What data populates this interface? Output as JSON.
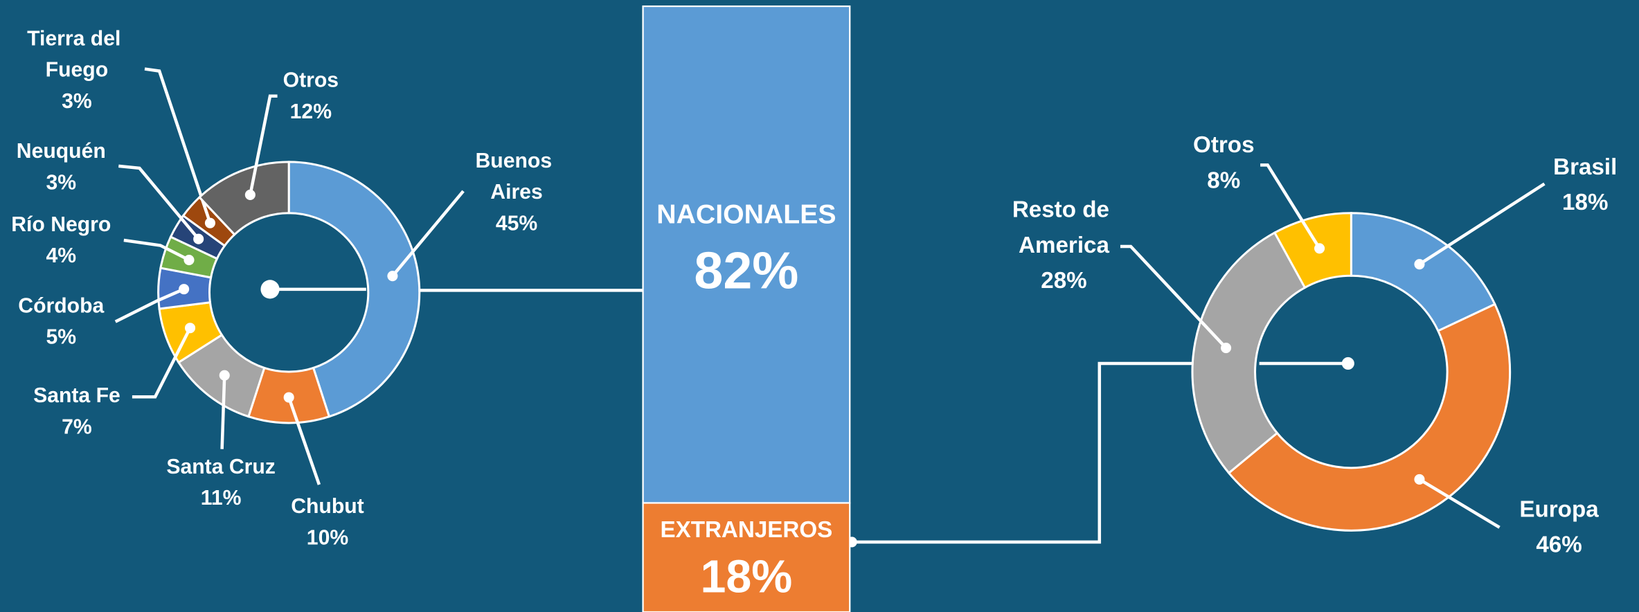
{
  "chart_data": [
    {
      "type": "donut",
      "categories": [
        "Buenos Aires",
        "Chubut",
        "Santa Cruz",
        "Santa Fe",
        "Córdoba",
        "Río Negro",
        "Neuquén",
        "Tierra del Fuego",
        "Otros"
      ],
      "values": [
        45,
        10,
        11,
        7,
        5,
        4,
        3,
        3,
        12
      ],
      "value_labels": [
        "45%",
        "10%",
        "11%",
        "7%",
        "5%",
        "4%",
        "3%",
        "3%",
        "12%"
      ],
      "colors": [
        "#5b9bd5",
        "#ed7d31",
        "#a5a5a5",
        "#ffc000",
        "#4472c4",
        "#70ad47",
        "#264478",
        "#9e480e",
        "#636363"
      ]
    },
    {
      "type": "stacked_bar",
      "categories": [
        "NACIONALES",
        "EXTRANJEROS"
      ],
      "values": [
        82,
        18
      ],
      "value_labels": [
        "82%",
        "18%"
      ],
      "colors": [
        "#5b9bd5",
        "#ed7d31"
      ]
    },
    {
      "type": "donut",
      "categories": [
        "Brasil",
        "Europa",
        "Resto de America",
        "Otros"
      ],
      "values": [
        18,
        46,
        28,
        8
      ],
      "value_labels": [
        "18%",
        "46%",
        "28%",
        "8%"
      ],
      "colors": [
        "#5b9bd5",
        "#ed7d31",
        "#a5a5a5",
        "#ffc000"
      ]
    }
  ]
}
